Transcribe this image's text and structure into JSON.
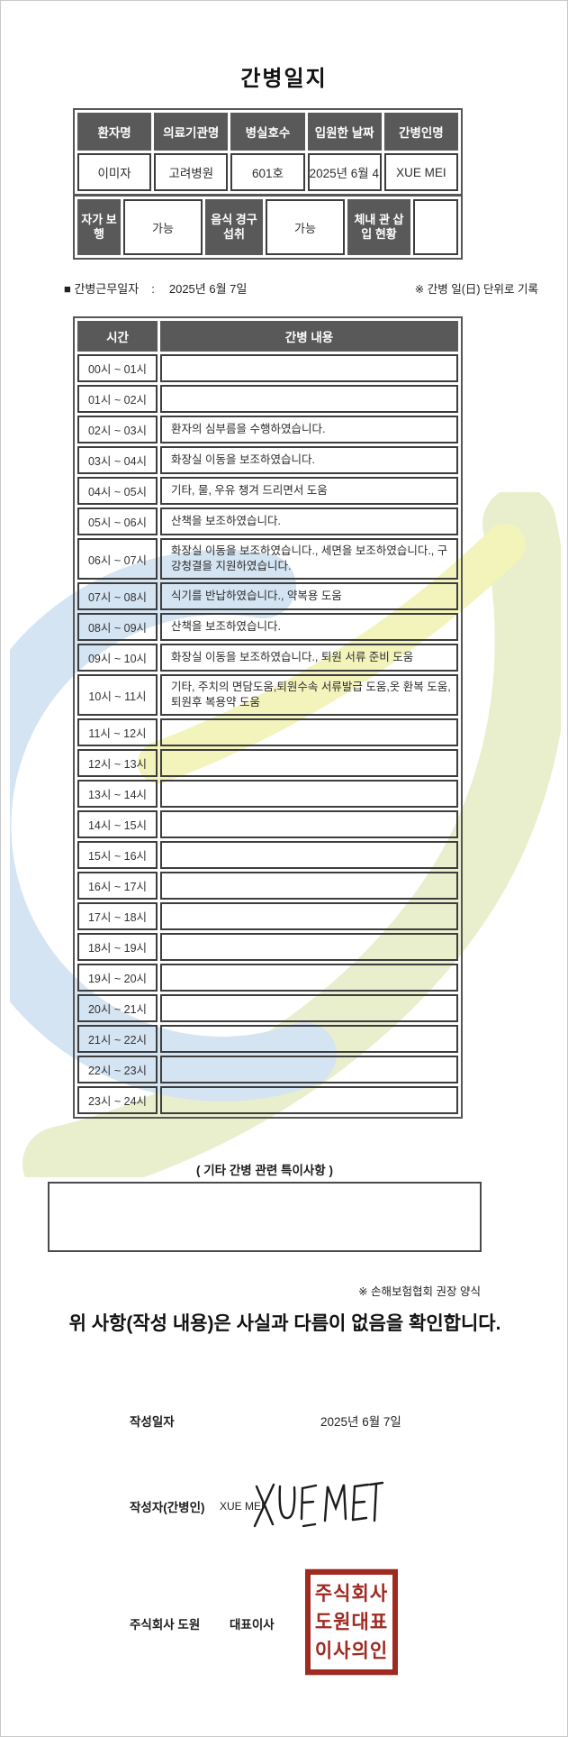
{
  "title": "간병일지",
  "patient_table": {
    "headers": [
      "환자명",
      "의료기관명",
      "병실호수",
      "입원한 날짜",
      "간병인명"
    ],
    "values": [
      "이미자",
      "고려병원",
      "601호",
      "2025년 6월 4일",
      "XUE MEI"
    ]
  },
  "status_table": {
    "cells": [
      {
        "type": "header",
        "label": "자가 보행"
      },
      {
        "type": "value",
        "label": "가능"
      },
      {
        "type": "header",
        "label": "음식 경구 섭취"
      },
      {
        "type": "value",
        "label": "가능"
      },
      {
        "type": "header",
        "label": "체내 관 삽입 현황"
      },
      {
        "type": "value",
        "label": ""
      }
    ]
  },
  "work_date": {
    "label": "■ 간병근무일자",
    "colon": ":",
    "value": "2025년 6월 7일",
    "note": "※ 간병 일(日) 단위로 기록"
  },
  "care_table": {
    "headers": [
      "시간",
      "간병 내용"
    ],
    "rows": [
      {
        "time": "00시 ~ 01시",
        "content": ""
      },
      {
        "time": "01시 ~ 02시",
        "content": ""
      },
      {
        "time": "02시 ~ 03시",
        "content": "환자의 심부름을 수행하였습니다."
      },
      {
        "time": "03시 ~ 04시",
        "content": "화장실 이동을 보조하였습니다."
      },
      {
        "time": "04시 ~ 05시",
        "content": "기타, 물, 우유 챙겨 드리면서 도움"
      },
      {
        "time": "05시 ~ 06시",
        "content": "산책을 보조하였습니다."
      },
      {
        "time": "06시 ~ 07시",
        "content": "화장실 이동을 보조하였습니다., 세면을 보조하였습니다., 구강청결을 지원하였습니다."
      },
      {
        "time": "07시 ~ 08시",
        "content": "식기를 반납하였습니다., 약복용 도움"
      },
      {
        "time": "08시 ~ 09시",
        "content": "산책을 보조하였습니다."
      },
      {
        "time": "09시 ~ 10시",
        "content": "화장실 이동을 보조하였습니다., 퇴원 서류 준비 도움"
      },
      {
        "time": "10시 ~ 11시",
        "content": "기타, 주치의 면담도움,퇴원수속 서류발급 도움,옷 환복 도움, 퇴원후 복용약 도움"
      },
      {
        "time": "11시 ~ 12시",
        "content": ""
      },
      {
        "time": "12시 ~ 13시",
        "content": ""
      },
      {
        "time": "13시 ~ 14시",
        "content": ""
      },
      {
        "time": "14시 ~ 15시",
        "content": ""
      },
      {
        "time": "15시 ~ 16시",
        "content": ""
      },
      {
        "time": "16시 ~ 17시",
        "content": ""
      },
      {
        "time": "17시 ~ 18시",
        "content": ""
      },
      {
        "time": "18시 ~ 19시",
        "content": ""
      },
      {
        "time": "19시 ~ 20시",
        "content": ""
      },
      {
        "time": "20시 ~ 21시",
        "content": ""
      },
      {
        "time": "21시 ~ 22시",
        "content": ""
      },
      {
        "time": "22시 ~ 23시",
        "content": ""
      },
      {
        "time": "23시 ~ 24시",
        "content": ""
      }
    ]
  },
  "notes_section": {
    "title": "( 기타 간병 관련 특이사항 )",
    "content": ""
  },
  "form_note": "※ 손해보험협회 권장 양식",
  "confirmation": "위 사항(작성 내용)은 사실과 다름이 없음을 확인합니다.",
  "written_date": {
    "label": "작성일자",
    "value": "2025년 6월 7일"
  },
  "writer": {
    "label": "작성자(간병인)",
    "value": "XUE MEI",
    "signature_text": "XUE MEI"
  },
  "company": {
    "name": "주식회사 도원",
    "role": "대표이사",
    "stamp_lines": [
      "주식회사",
      "도원대표",
      "이사의인"
    ]
  },
  "colors": {
    "table_header_bg": "#595959",
    "table_border": "#3d3d3d",
    "stamp_red": "#9e2a20",
    "watermark_blue": "#d5e4f2",
    "watermark_green": "#e9efcd",
    "watermark_yellow": "#f2f3b8"
  }
}
